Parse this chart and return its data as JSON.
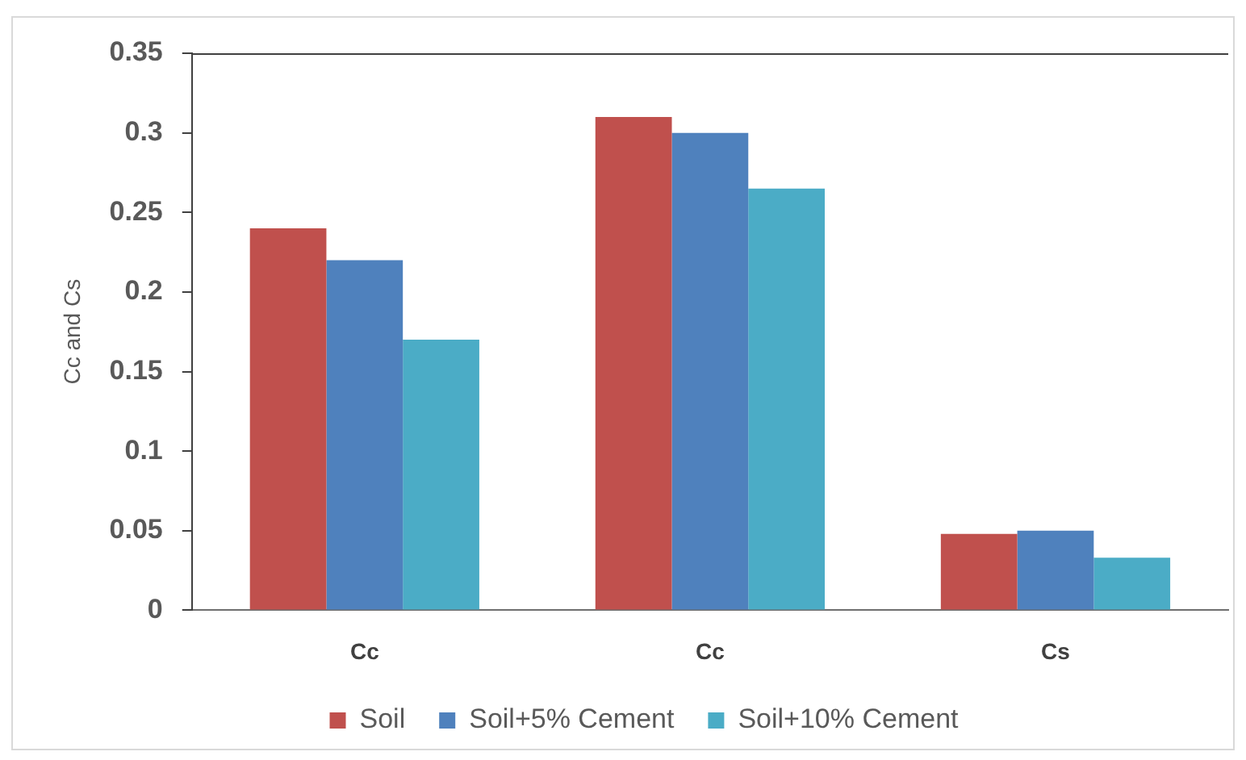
{
  "chart_data": {
    "type": "bar",
    "ylabel": "Cc and Cs",
    "categories": [
      "Cc",
      "Cc",
      "Cs"
    ],
    "series": [
      {
        "name": "Soil",
        "color": "#c0504d",
        "values": [
          0.24,
          0.31,
          0.048
        ]
      },
      {
        "name": "Soil+5% Cement",
        "color": "#4f81bd",
        "values": [
          0.22,
          0.3,
          0.05
        ]
      },
      {
        "name": "Soil+10% Cement",
        "color": "#4bacc6",
        "values": [
          0.17,
          0.265,
          0.033
        ]
      }
    ],
    "ylim": [
      0,
      0.35
    ],
    "yticks": [
      0,
      0.05,
      0.1,
      0.15,
      0.2,
      0.25,
      0.3,
      0.35
    ],
    "grid": false,
    "legend": "bottom"
  }
}
